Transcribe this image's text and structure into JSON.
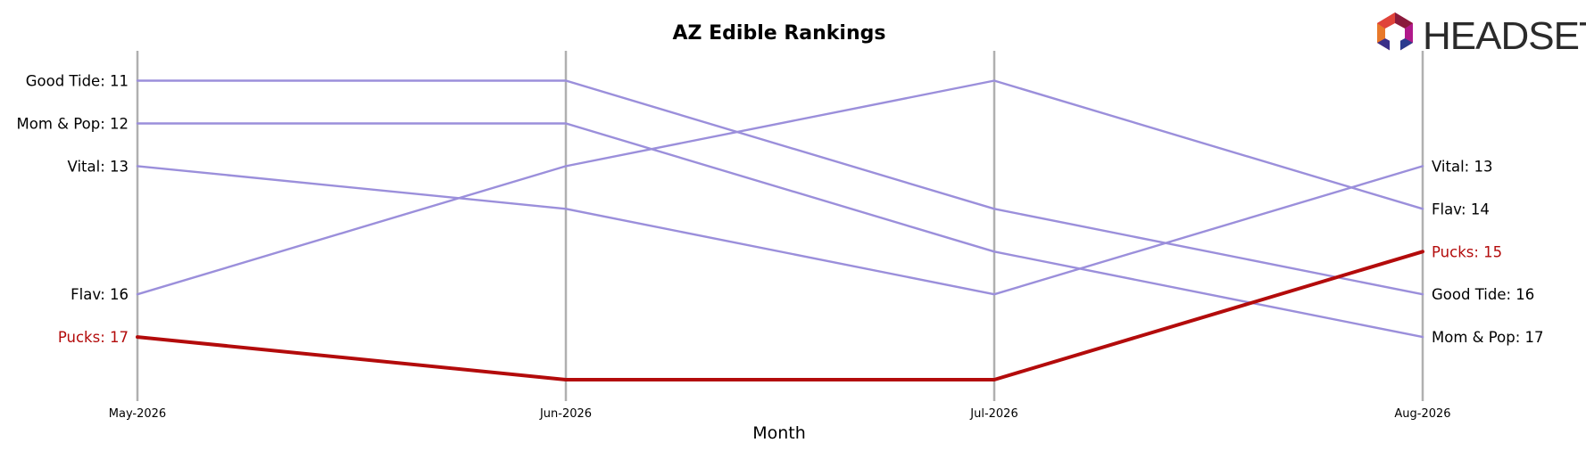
{
  "logo": {
    "text": "HEADSET"
  },
  "chart_data": {
    "type": "line",
    "title": "AZ Edible Rankings",
    "xlabel": "Month",
    "ylabel": "",
    "x": [
      "May-2026",
      "Jun-2026",
      "Jul-2026",
      "Aug-2026"
    ],
    "y_axis": {
      "inverted": true,
      "range": [
        10.3,
        18.5
      ],
      "ticks_shown": false
    },
    "grid": "vertical lines at each month",
    "label_format": "{name}: {rank}",
    "series": [
      {
        "name": "Good Tide",
        "values": [
          11,
          11,
          14,
          16
        ],
        "color": "#9b8fdb",
        "highlight": false
      },
      {
        "name": "Mom & Pop",
        "values": [
          12,
          12,
          15,
          17
        ],
        "color": "#9b8fdb",
        "highlight": false
      },
      {
        "name": "Vital",
        "values": [
          13,
          14,
          16,
          13
        ],
        "color": "#9b8fdb",
        "highlight": false
      },
      {
        "name": "Flav",
        "values": [
          16,
          13,
          11,
          14
        ],
        "color": "#9b8fdb",
        "highlight": false
      },
      {
        "name": "Pucks",
        "values": [
          17,
          18,
          18,
          15
        ],
        "color": "#b30b0b",
        "highlight": true
      }
    ]
  },
  "colors": {
    "gridline": "#b0b0b0",
    "default_series": "#9b8fdb",
    "highlight_series": "#b30b0b",
    "text": "#000000"
  }
}
